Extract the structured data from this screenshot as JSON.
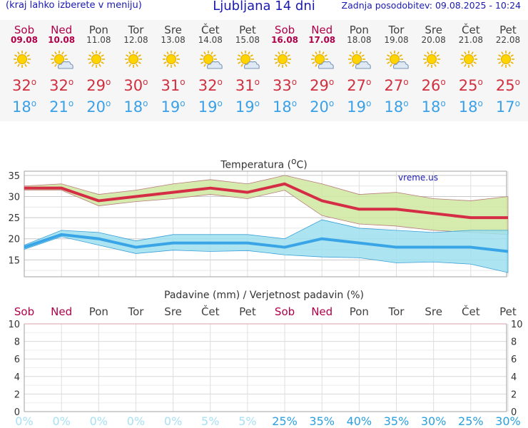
{
  "header": {
    "left_note": "(kraj lahko izberete v meniju)",
    "title": "Ljubljana 14 dni",
    "updated": "Zadnja posodobitev: 09.08.2025 - 10:24"
  },
  "days": [
    {
      "name": "Sob",
      "date": "09.08",
      "weekend": true,
      "icon": "sun-icon",
      "max": "32",
      "min": "18"
    },
    {
      "name": "Ned",
      "date": "10.08",
      "weekend": true,
      "icon": "sun-cloud-icon",
      "max": "32",
      "min": "21"
    },
    {
      "name": "Pon",
      "date": "11.08",
      "weekend": false,
      "icon": "sun-icon",
      "max": "29",
      "min": "20"
    },
    {
      "name": "Tor",
      "date": "12.08",
      "weekend": false,
      "icon": "sun-icon",
      "max": "30",
      "min": "18"
    },
    {
      "name": "Sre",
      "date": "13.08",
      "weekend": false,
      "icon": "sun-icon",
      "max": "31",
      "min": "19"
    },
    {
      "name": "Čet",
      "date": "14.08",
      "weekend": false,
      "icon": "sun-cloud-icon",
      "max": "32",
      "min": "19"
    },
    {
      "name": "Pet",
      "date": "15.08",
      "weekend": false,
      "icon": "sun-cloud-icon",
      "max": "31",
      "min": "19"
    },
    {
      "name": "Sob",
      "date": "16.08",
      "weekend": true,
      "icon": "sun-icon",
      "max": "33",
      "min": "18"
    },
    {
      "name": "Ned",
      "date": "17.08",
      "weekend": true,
      "icon": "sun-cloud-icon",
      "max": "29",
      "min": "20"
    },
    {
      "name": "Pon",
      "date": "18.08",
      "weekend": false,
      "icon": "sun-cloud-icon",
      "max": "27",
      "min": "19"
    },
    {
      "name": "Tor",
      "date": "19.08",
      "weekend": false,
      "icon": "sun-cloud-icon",
      "max": "27",
      "min": "18"
    },
    {
      "name": "Sre",
      "date": "20.08",
      "weekend": false,
      "icon": "sun-icon",
      "max": "26",
      "min": "18"
    },
    {
      "name": "Čet",
      "date": "21.08",
      "weekend": false,
      "icon": "sun-icon",
      "max": "25",
      "min": "18"
    },
    {
      "name": "Pet",
      "date": "22.08",
      "weekend": false,
      "icon": "sun-icon",
      "max": "25",
      "min": "17"
    }
  ],
  "chart_data": [
    {
      "type": "line",
      "title": "Temperatura (°C)",
      "title_main": "Temperatura (",
      "title_unit": "C)",
      "watermark": "vreme.us",
      "categories": [
        "Sob",
        "Ned",
        "Pon",
        "Tor",
        "Sre",
        "Čet",
        "Pet",
        "Sob",
        "Ned",
        "Pon",
        "Tor",
        "Sre",
        "Čet",
        "Pet"
      ],
      "ylim": [
        11,
        36
      ],
      "yticks": [
        "15",
        "20",
        "25",
        "30",
        "35"
      ],
      "series": [
        {
          "name": "max",
          "color": "#d42d45",
          "values": [
            32,
            32,
            29,
            30,
            31,
            32,
            31,
            33,
            29,
            27,
            27,
            26,
            25,
            25
          ],
          "band_high": [
            32.5,
            33,
            30.5,
            31.5,
            33,
            34,
            33,
            35,
            33,
            30.5,
            31,
            29.5,
            29,
            30
          ],
          "band_low": [
            31.5,
            31.5,
            27.8,
            28.8,
            29.5,
            30.5,
            29.5,
            31.5,
            25.5,
            23.5,
            23,
            22,
            21.5,
            21
          ],
          "band_color": "#cfe7a0"
        },
        {
          "name": "min",
          "color": "#3aa5e6",
          "values": [
            18,
            21,
            20,
            18,
            19,
            19,
            19,
            18,
            20,
            19,
            18,
            18,
            18,
            17
          ],
          "band_high": [
            18.5,
            22,
            21.5,
            19.5,
            21,
            21,
            21,
            20,
            24.5,
            22.5,
            22,
            21.5,
            22,
            22
          ],
          "band_low": [
            17.5,
            20.5,
            18.5,
            16.5,
            17.3,
            17,
            17.2,
            16.2,
            15.7,
            15.5,
            14.3,
            14.5,
            14,
            12
          ],
          "band_color": "#9ee0ef"
        }
      ]
    },
    {
      "type": "bar",
      "title": "Padavine (mm) / Verjetnost padavin (%)",
      "categories": [
        "Sob",
        "Ned",
        "Pon",
        "Tor",
        "Sre",
        "Čet",
        "Pet",
        "Sob",
        "Ned",
        "Pon",
        "Tor",
        "Sre",
        "Čet",
        "Pet"
      ],
      "values": [
        0,
        0,
        0,
        0,
        0,
        0,
        0,
        0,
        0,
        0,
        0,
        0,
        0,
        0
      ],
      "ylim": [
        0,
        10
      ],
      "yticks": [
        "0",
        "2",
        "4",
        "6",
        "8",
        "10"
      ],
      "probability": [
        "0%",
        "0%",
        "0%",
        "0%",
        "5%",
        "5%",
        "25%",
        "35%",
        "40%",
        "35%",
        "30%",
        "25%",
        "30%"
      ],
      "probability_all": [
        "0%",
        "0%",
        "0%",
        "0%",
        "0%",
        "5%",
        "5%",
        "25%",
        "35%",
        "40%",
        "35%",
        "30%",
        "25%",
        "30%"
      ]
    }
  ]
}
